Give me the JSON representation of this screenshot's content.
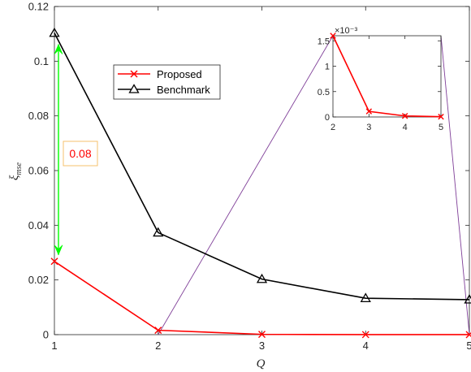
{
  "chart_data": [
    {
      "type": "line",
      "xlabel": "Q",
      "ylabel": "ξ_mse",
      "x": [
        1,
        2,
        3,
        4,
        5
      ],
      "xlim": [
        1,
        5
      ],
      "ylim": [
        0,
        0.12
      ],
      "xticks": [
        "1",
        "2",
        "3",
        "4",
        "5"
      ],
      "yticks": [
        "0",
        "0.02",
        "0.04",
        "0.06",
        "0.08",
        "0.1",
        "0.12"
      ],
      "grid": false,
      "legend_position": "upper-left-center",
      "series": [
        {
          "name": "Proposed",
          "marker": "x",
          "color": "#ff0000",
          "values": [
            0.0268,
            0.0016,
            0.00011,
            2e-05,
            5e-06
          ]
        },
        {
          "name": "Benchmark",
          "marker": "triangle",
          "color": "#000000",
          "values": [
            0.1103,
            0.0373,
            0.0203,
            0.0133,
            0.0128
          ]
        }
      ],
      "annotation": {
        "text": "0.08",
        "text_color": "#ff0000",
        "box_color": "#f5c16c",
        "arrow_color": "#00ff00",
        "from_y": 0.1103,
        "to_y": 0.0268,
        "at_x": 1
      },
      "zoom_link_color": "#7f3f98"
    },
    {
      "type": "line",
      "inset": true,
      "x": [
        2,
        3,
        4,
        5
      ],
      "xlim": [
        2,
        5
      ],
      "ylim": [
        0,
        1.6
      ],
      "exponent_label": "×10⁻³",
      "xticks": [
        "2",
        "3",
        "4",
        "5"
      ],
      "yticks": [
        "0",
        "0.5",
        "1",
        "1.5"
      ],
      "series": [
        {
          "marker": "x",
          "color": "#ff0000",
          "values": [
            1.6,
            0.11,
            0.02,
            0.005
          ]
        }
      ]
    }
  ]
}
